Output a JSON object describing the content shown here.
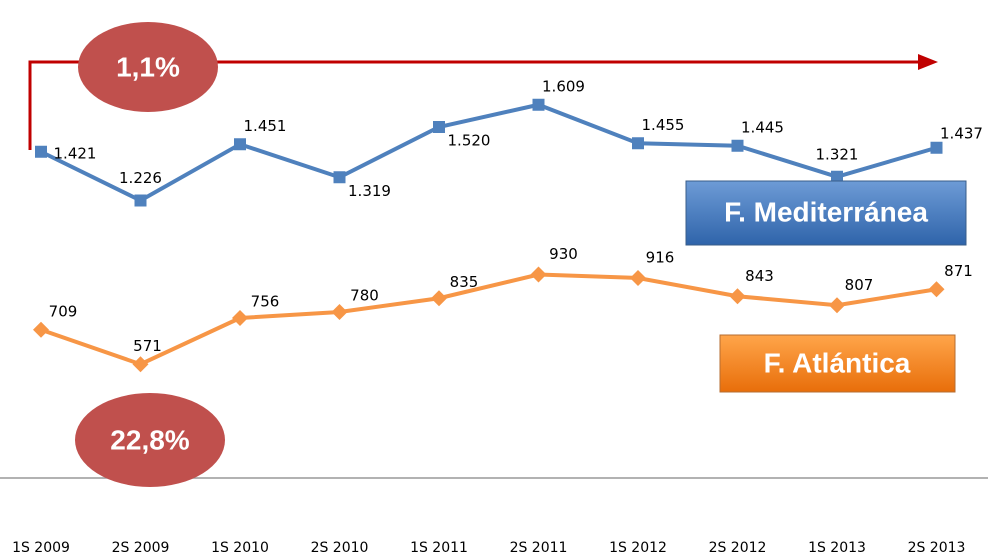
{
  "chart_data": {
    "type": "line",
    "categories": [
      "1S 2009",
      "2S 2009",
      "1S 2010",
      "2S 2010",
      "1S 2011",
      "2S 2011",
      "1S 2012",
      "2S 2012",
      "1S 2013",
      "2S 2013"
    ],
    "series": [
      {
        "name": "F. Mediterránea",
        "color": "#4f81bd",
        "values": [
          1421,
          1226,
          1451,
          1319,
          1520,
          1609,
          1455,
          1445,
          1321,
          1437
        ],
        "value_labels": [
          "1.421",
          "1.226",
          "1.451",
          "1.319",
          "1.520",
          "1.609",
          "1.455",
          "1.445",
          "1.321",
          "1.437"
        ]
      },
      {
        "name": "F. Atlántica",
        "color": "#f79646",
        "values": [
          709,
          571,
          756,
          780,
          835,
          930,
          916,
          843,
          807,
          871
        ]
      }
    ],
    "annotations": [
      "1,1%",
      "22,8%"
    ],
    "ylim": [
      0,
      2000
    ]
  }
}
